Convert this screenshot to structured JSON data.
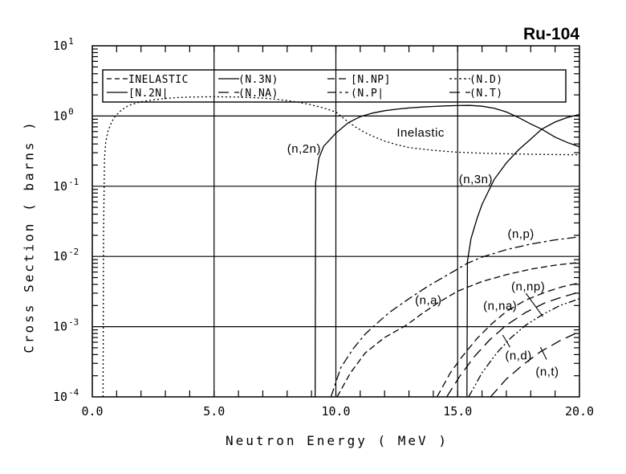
{
  "page_title": "Ru-104",
  "colors": {
    "stroke": "#000000",
    "background": "#ffffff"
  },
  "chart_data": {
    "type": "line",
    "title": "Ru-104",
    "xlabel": "Neutron Energy ( MeV )",
    "ylabel": "Cross Section ( barns )",
    "xlim": [
      0.0,
      20.0
    ],
    "yscale": "log",
    "ylim": [
      0.0001,
      10
    ],
    "grid": true,
    "x_ticks": [
      {
        "value": 0,
        "label": "0.0"
      },
      {
        "value": 5,
        "label": "5.0"
      },
      {
        "value": 10,
        "label": "10.0"
      },
      {
        "value": 15,
        "label": "15.0"
      },
      {
        "value": 20,
        "label": "20.0"
      }
    ],
    "y_ticks": [
      {
        "value": 10,
        "base": "10",
        "exp": "1"
      },
      {
        "value": 1,
        "base": "10",
        "exp": "0"
      },
      {
        "value": 0.1,
        "base": "10",
        "exp": "-1"
      },
      {
        "value": 0.01,
        "base": "10",
        "exp": "-2"
      },
      {
        "value": 0.001,
        "base": "10",
        "exp": "-3"
      },
      {
        "value": 0.0001,
        "base": "10",
        "exp": "-4"
      }
    ],
    "legend": {
      "position": "top",
      "entries": [
        {
          "label": "INELASTIC",
          "dash": "6 4"
        },
        {
          "label": "(N.3N)",
          "dash": ""
        },
        {
          "label": "[N.NP]",
          "dash": "9 5"
        },
        {
          "label": "(N.D)",
          "dash": "3 3"
        },
        {
          "label": "[N.2N|",
          "dash": ""
        },
        {
          "label": "(N.NA)",
          "dash": "13 7"
        },
        {
          "label": "(N.P|",
          "dash": "11 4 3 4"
        },
        {
          "label": "(N.T)",
          "dash": "13 7"
        }
      ]
    },
    "series": [
      {
        "name": "inelastic",
        "dash": "2 3",
        "points": [
          [
            0.44,
            0.0001
          ],
          [
            0.46,
            0.02
          ],
          [
            0.5,
            0.25
          ],
          [
            0.55,
            0.42
          ],
          [
            0.65,
            0.62
          ],
          [
            0.8,
            0.83
          ],
          [
            0.95,
            1.0
          ],
          [
            1.2,
            1.22
          ],
          [
            1.5,
            1.42
          ],
          [
            2.0,
            1.6
          ],
          [
            2.5,
            1.7
          ],
          [
            3.0,
            1.78
          ],
          [
            3.5,
            1.83
          ],
          [
            4.0,
            1.86
          ],
          [
            5.0,
            1.88
          ],
          [
            6.0,
            1.86
          ],
          [
            7.0,
            1.8
          ],
          [
            7.5,
            1.74
          ],
          [
            8.0,
            1.66
          ],
          [
            8.5,
            1.56
          ],
          [
            9.0,
            1.44
          ],
          [
            9.5,
            1.3
          ],
          [
            10.0,
            1.14
          ],
          [
            10.4,
            0.88
          ],
          [
            10.8,
            0.7
          ],
          [
            11.2,
            0.58
          ],
          [
            11.6,
            0.5
          ],
          [
            12.0,
            0.44
          ],
          [
            12.5,
            0.39
          ],
          [
            13.0,
            0.355
          ],
          [
            14.0,
            0.325
          ],
          [
            15.0,
            0.305
          ],
          [
            16.0,
            0.295
          ],
          [
            17.0,
            0.29
          ],
          [
            18.0,
            0.285
          ],
          [
            19.0,
            0.282
          ],
          [
            20.0,
            0.28
          ]
        ]
      },
      {
        "name": "(n,2n)",
        "dash": "",
        "points": [
          [
            9.15,
            0.0001
          ],
          [
            9.17,
            0.115
          ],
          [
            9.3,
            0.25
          ],
          [
            9.5,
            0.37
          ],
          [
            9.8,
            0.48
          ],
          [
            10.0,
            0.57
          ],
          [
            10.5,
            0.8
          ],
          [
            11.0,
            0.98
          ],
          [
            11.5,
            1.1
          ],
          [
            12.0,
            1.19
          ],
          [
            12.5,
            1.25
          ],
          [
            13.0,
            1.3
          ],
          [
            13.5,
            1.34
          ],
          [
            14.0,
            1.37
          ],
          [
            14.5,
            1.395
          ],
          [
            15.0,
            1.41
          ],
          [
            15.5,
            1.415
          ],
          [
            16.0,
            1.38
          ],
          [
            16.5,
            1.29
          ],
          [
            17.0,
            1.14
          ],
          [
            17.5,
            0.95
          ],
          [
            18.0,
            0.77
          ],
          [
            18.45,
            0.65
          ],
          [
            19.0,
            0.5
          ],
          [
            19.5,
            0.42
          ],
          [
            20.0,
            0.365
          ]
        ]
      },
      {
        "name": "(n,3n)",
        "dash": "",
        "points": [
          [
            15.38,
            0.0001
          ],
          [
            15.4,
            0.0085
          ],
          [
            15.55,
            0.018
          ],
          [
            15.8,
            0.035
          ],
          [
            16.0,
            0.055
          ],
          [
            16.5,
            0.125
          ],
          [
            17.0,
            0.215
          ],
          [
            17.5,
            0.33
          ],
          [
            18.0,
            0.47
          ],
          [
            18.45,
            0.65
          ],
          [
            19.0,
            0.82
          ],
          [
            19.5,
            0.95
          ],
          [
            20.0,
            1.05
          ]
        ]
      },
      {
        "name": "(n,p)",
        "dash": "11 4 3 4",
        "points": [
          [
            9.8,
            0.0001
          ],
          [
            10.2,
            0.00026
          ],
          [
            10.7,
            0.00048
          ],
          [
            11.2,
            0.00078
          ],
          [
            11.6,
            0.00105
          ],
          [
            12.2,
            0.0016
          ],
          [
            13.0,
            0.0025
          ],
          [
            13.8,
            0.0038
          ],
          [
            14.6,
            0.0055
          ],
          [
            15.4,
            0.008
          ],
          [
            16.0,
            0.0098
          ],
          [
            17.0,
            0.0125
          ],
          [
            18.0,
            0.015
          ],
          [
            19.0,
            0.0172
          ],
          [
            20.0,
            0.019
          ]
        ]
      },
      {
        "name": "(n,a)",
        "dash": "8 4",
        "points": [
          [
            10.05,
            0.0001
          ],
          [
            10.6,
            0.00022
          ],
          [
            11.2,
            0.00042
          ],
          [
            12.0,
            0.0007
          ],
          [
            12.9,
            0.00105
          ],
          [
            13.5,
            0.0015
          ],
          [
            14.2,
            0.0022
          ],
          [
            15.0,
            0.0032
          ],
          [
            16.0,
            0.0044
          ],
          [
            17.0,
            0.0055
          ],
          [
            18.0,
            0.0066
          ],
          [
            19.0,
            0.0075
          ],
          [
            20.0,
            0.0082
          ]
        ]
      },
      {
        "name": "(n,np)",
        "dash": "9 5",
        "points": [
          [
            14.15,
            0.0001
          ],
          [
            14.7,
            0.00022
          ],
          [
            15.2,
            0.00038
          ],
          [
            15.8,
            0.00068
          ],
          [
            16.4,
            0.0011
          ],
          [
            17.0,
            0.00165
          ],
          [
            17.8,
            0.0024
          ],
          [
            18.6,
            0.0031
          ],
          [
            19.3,
            0.0037
          ],
          [
            20.0,
            0.0042
          ]
        ]
      },
      {
        "name": "(n,na)",
        "dash": "13 7",
        "points": [
          [
            14.55,
            0.0001
          ],
          [
            15.1,
            0.0002
          ],
          [
            15.7,
            0.00038
          ],
          [
            16.3,
            0.00064
          ],
          [
            17.0,
            0.00105
          ],
          [
            17.8,
            0.0016
          ],
          [
            18.6,
            0.0022
          ],
          [
            19.3,
            0.00265
          ],
          [
            20.0,
            0.0031
          ]
        ]
      },
      {
        "name": "(n,d)",
        "dash": "9 3 2 3 2 3",
        "points": [
          [
            15.45,
            0.0001
          ],
          [
            16.0,
            0.00022
          ],
          [
            16.6,
            0.00042
          ],
          [
            17.2,
            0.0007
          ],
          [
            17.8,
            0.00105
          ],
          [
            18.5,
            0.0015
          ],
          [
            19.2,
            0.002
          ],
          [
            20.0,
            0.0025
          ]
        ]
      },
      {
        "name": "(n,t)",
        "dash": "13 7",
        "points": [
          [
            16.35,
            0.0001
          ],
          [
            17.0,
            0.00018
          ],
          [
            17.7,
            0.00029
          ],
          [
            18.4,
            0.00044
          ],
          [
            19.2,
            0.00063
          ],
          [
            20.0,
            0.00085
          ]
        ]
      }
    ],
    "annotations": [
      {
        "text": "Inelastic",
        "x": 12.5,
        "y": 0.51
      },
      {
        "text": "(n,2n)",
        "x": 8.0,
        "y": 0.3
      },
      {
        "text": "(n,3n)",
        "x": 15.05,
        "y": 0.111
      },
      {
        "text": "(n,p)",
        "x": 17.05,
        "y": 0.0185
      },
      {
        "text": "(n,a)",
        "x": 13.25,
        "y": 0.0021
      },
      {
        "text": "(n,np)",
        "x": 17.2,
        "y": 0.0033,
        "line": [
          [
            17.8,
            0.003
          ],
          [
            18.5,
            0.00139
          ]
        ]
      },
      {
        "text": "(n,na)",
        "x": 16.05,
        "y": 0.00175
      },
      {
        "text": "(n,d)",
        "x": 16.95,
        "y": 0.00034,
        "line": [
          [
            17.15,
            0.00051
          ],
          [
            16.85,
            0.00076
          ]
        ]
      },
      {
        "text": "(n,t)",
        "x": 18.2,
        "y": 0.0002,
        "line": [
          [
            18.65,
            0.00034
          ],
          [
            18.4,
            0.00051
          ]
        ]
      }
    ]
  }
}
